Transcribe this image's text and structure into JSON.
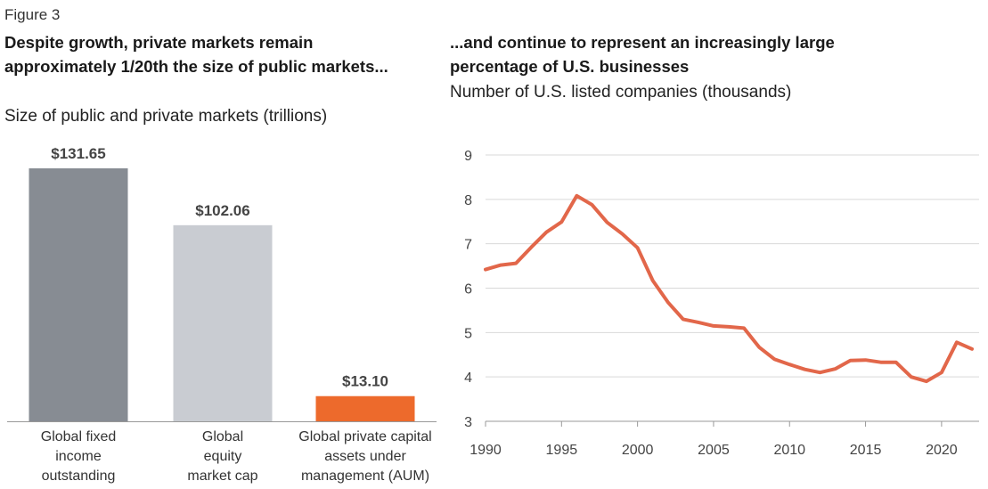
{
  "figure_label": "Figure 3",
  "colors": {
    "bar_fixed": "#878c93",
    "bar_equity": "#c9ccd2",
    "bar_private": "#ed6a2c",
    "line": "#e2674a",
    "grid": "#d9d9d9",
    "axis": "#999999"
  },
  "chart_data": [
    {
      "type": "bar",
      "title": "Despite growth, private markets remain approximately 1/20th the size of public markets...",
      "subtitle": "Size of public and private markets (trillions)",
      "categories": [
        "Global fixed income outstanding",
        "Global equity market cap",
        "Global private capital assets under management (AUM)"
      ],
      "category_lines": [
        [
          "Global fixed",
          "income",
          "outstanding"
        ],
        [
          "Global",
          "equity",
          "market cap"
        ],
        [
          "Global private capital",
          "assets under",
          "management (AUM)"
        ]
      ],
      "values": [
        131.65,
        102.06,
        13.1
      ],
      "value_labels": [
        "$131.65",
        "$102.06",
        "$13.10"
      ],
      "ylim": [
        0,
        140
      ]
    },
    {
      "type": "line",
      "title": "...and continue to represent an increasingly large percentage of U.S. businesses",
      "subtitle": "Number of U.S. listed companies (thousands)",
      "x": [
        1990,
        1991,
        1992,
        1993,
        1994,
        1995,
        1996,
        1997,
        1998,
        1999,
        2000,
        2001,
        2002,
        2003,
        2004,
        2005,
        2006,
        2007,
        2008,
        2009,
        2010,
        2011,
        2012,
        2013,
        2014,
        2015,
        2016,
        2017,
        2018,
        2019,
        2020,
        2021,
        2022
      ],
      "y": [
        6.42,
        6.52,
        6.56,
        6.92,
        7.26,
        7.49,
        8.08,
        7.88,
        7.48,
        7.22,
        6.91,
        6.17,
        5.68,
        5.3,
        5.23,
        5.15,
        5.13,
        5.1,
        4.67,
        4.4,
        4.28,
        4.17,
        4.1,
        4.18,
        4.37,
        4.38,
        4.33,
        4.33,
        4.0,
        3.9,
        4.1,
        4.78,
        4.63
      ],
      "xlim": [
        1990,
        2022
      ],
      "ylim": [
        3,
        9
      ],
      "xticks": [
        1990,
        1995,
        2000,
        2005,
        2010,
        2015,
        2020
      ],
      "yticks": [
        3,
        4,
        5,
        6,
        7,
        8,
        9
      ],
      "grid": true
    }
  ]
}
